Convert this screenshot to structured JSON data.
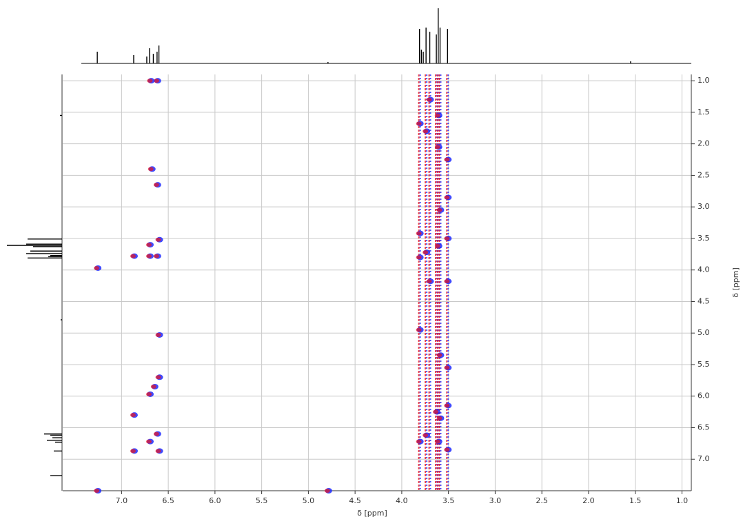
{
  "chart_data": {
    "type": "nmr2d",
    "x_label": "δ [ppm]",
    "y_label": "δ [ppm]",
    "xlim": [
      7.63,
      0.9
    ],
    "ylim": [
      0.9,
      7.5
    ],
    "xticks": [
      {
        "value": 7,
        "label": "7.0"
      },
      6.5,
      {
        "value": 6,
        "label": "6.0"
      },
      5.5,
      {
        "value": 5,
        "label": "5.0"
      },
      4.5,
      {
        "value": 4,
        "label": "4.0"
      },
      3.5,
      {
        "value": 3,
        "label": "3.0"
      },
      2.5,
      {
        "value": 2,
        "label": "2.0"
      },
      1.5,
      {
        "value": 1,
        "label": "1.0"
      }
    ],
    "yticks": [
      {
        "value": 1,
        "label": "1.0"
      },
      1.5,
      {
        "value": 2,
        "label": "2.0"
      },
      2.5,
      {
        "value": 3,
        "label": "3.0"
      },
      3.5,
      {
        "value": 4,
        "label": "4.0"
      },
      4.5,
      {
        "value": 5,
        "label": "5.0"
      },
      5.5,
      {
        "value": 6,
        "label": "6.0"
      },
      6.5,
      {
        "value": 7,
        "label": "7.0"
      }
    ],
    "grid": true,
    "projection": {
      "x": [
        7.26,
        6.87,
        6.73,
        6.7,
        6.66,
        6.62,
        6.6,
        4.79,
        3.81,
        3.79,
        3.77,
        3.74,
        3.7,
        3.63,
        3.61,
        3.59,
        3.51,
        1.55
      ],
      "values": [
        17,
        12,
        10,
        22,
        14,
        17,
        26,
        2,
        50,
        20,
        17,
        52,
        46,
        42,
        80,
        52,
        50,
        3
      ],
      "ylim": [
        0,
        80
      ],
      "color": "#000000"
    },
    "cross_peaks": {
      "colors": [
        "#1f2bff",
        "#e8141e"
      ],
      "x": [
        6.62,
        6.69,
        6.68,
        6.62,
        6.6,
        6.7,
        6.87,
        6.7,
        6.62,
        7.26,
        6.6,
        6.6,
        6.65,
        6.7,
        6.87,
        6.7,
        6.62,
        6.87,
        6.6,
        3.81,
        3.74,
        3.61,
        3.51,
        3.51,
        3.59,
        3.81,
        3.74,
        3.81,
        3.61,
        3.51,
        3.7,
        3.51,
        3.81,
        3.59,
        3.51,
        3.51,
        3.59,
        3.63,
        3.81,
        3.74,
        3.61,
        3.51,
        3.61,
        3.7,
        4.79,
        7.26
      ],
      "y": [
        1.0,
        1.0,
        2.4,
        2.65,
        3.52,
        3.6,
        3.78,
        3.78,
        3.78,
        3.97,
        5.03,
        5.7,
        5.85,
        5.97,
        6.3,
        6.72,
        6.6,
        6.87,
        6.87,
        1.68,
        1.8,
        2.05,
        2.25,
        2.85,
        3.05,
        3.42,
        3.72,
        3.8,
        3.62,
        3.5,
        4.18,
        4.18,
        4.95,
        5.35,
        5.55,
        6.15,
        6.35,
        6.25,
        6.72,
        6.62,
        6.72,
        6.85,
        1.55,
        1.3,
        7.5,
        7.5
      ]
    }
  }
}
